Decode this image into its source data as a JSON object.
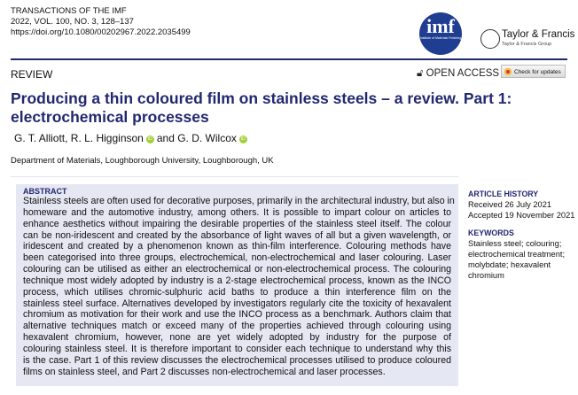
{
  "journal": {
    "name": "TRANSACTIONS OF THE IMF",
    "issue": "2022, VOL. 100, NO. 3, 128–137",
    "doi": "https://doi.org/10.1080/00202967.2022.2035499"
  },
  "logos": {
    "imf": "imf",
    "imf_sub": "Institute of Materials Finishing",
    "publisher": "Taylor & Francis",
    "publisher_group": "Taylor & Francis Group"
  },
  "article_type": "REVIEW",
  "open_access": "OPEN ACCESS",
  "check_updates": "Check for updates",
  "title_lines": [
    "Producing a thin coloured film on stainless steels – a review. Part 1:",
    "electrochemical processes"
  ],
  "authors": {
    "a1": "G. T. Alliott, R. L. Higginson",
    "and": "and G. D. Wilcox"
  },
  "affiliation": "Department of Materials, Loughborough University, Loughborough, UK",
  "abstract": {
    "heading": "ABSTRACT",
    "lines": [
      "Stainless steels are often used for decorative purposes, primarily in the architectural industry, but also in",
      "homeware and the automotive industry, among others. It is possible to impart colour on articles to",
      "enhance aesthetics without impairing the desirable properties of the stainless steel itself. The colour",
      "can be non-iridescent and created by the absorbance of light waves of all but a given wavelength, or",
      "iridescent and created by a phenomenon known as thin-film interference. Colouring methods have",
      "been categorised into three groups, electrochemical, non-electrochemical and laser colouring. Laser",
      "colouring can be utilised as either an electrochemical or non-electrochemical process. The colouring",
      "technique most widely adopted by industry is a 2-stage electrochemical process, known as the INCO",
      "process, which utilises chromic-sulphuric acid baths to produce a thin interference film on the",
      "stainless steel surface. Alternatives developed by investigators regularly cite the toxicity of hexavalent",
      "chromium as motivation for their work and use the INCO process as a benchmark. Authors claim that",
      "alternative techniques match or exceed many of the properties achieved through colouring using",
      "hexavalent chromium, however, none are yet widely adopted by industry for the purpose of",
      "colouring stainless steel. It is therefore important to consider each technique to understand why this",
      "is the case. Part 1 of this review discusses the electrochemical processes utilised to produce coloured",
      "films on stainless steel, and Part 2 discusses non-electrochemical and laser processes."
    ]
  },
  "history": {
    "heading": "ARTICLE HISTORY",
    "received": "Received 26 July 2021",
    "accepted": "Accepted 19 November 2021"
  },
  "keywords": {
    "heading": "KEYWORDS",
    "lines": [
      "Stainless steel; colouring;",
      "electrochemical treatment;",
      "molybdate; hexavalent",
      "chromium"
    ]
  },
  "colors": {
    "accent": "#22286f",
    "abstract_bg": "#e5e7f2",
    "orcid": "#a6ce39"
  }
}
